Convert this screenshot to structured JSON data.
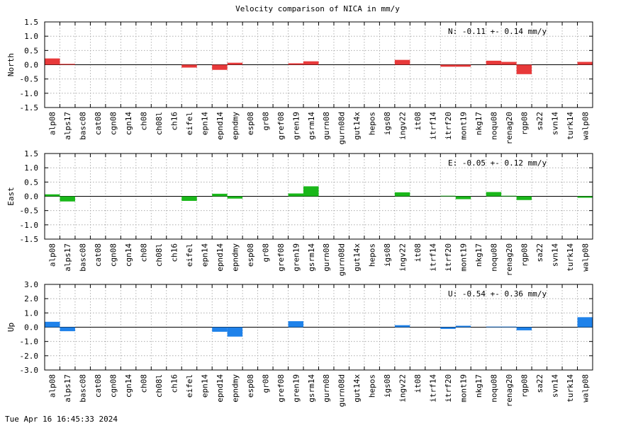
{
  "chart_data": {
    "type": "bar",
    "title": "Velocity comparison of NICA in mm/y",
    "categories": [
      "alp08",
      "alps17",
      "basc08",
      "cat08",
      "cgn08",
      "cgn14",
      "ch08",
      "ch08l",
      "ch16",
      "eifel",
      "epn14",
      "epnd14",
      "epndmy",
      "esp08",
      "gr08",
      "gref08",
      "gren19",
      "gsrm14",
      "gurn08",
      "gurn08d",
      "gut14x",
      "hepos",
      "igs08",
      "ingv22",
      "it08",
      "itrf14",
      "itrf20",
      "mont19",
      "nkg17",
      "noqu08",
      "renag20",
      "rgp08",
      "sa22",
      "svn14",
      "turk14",
      "walp08"
    ],
    "panels": [
      {
        "ylabel": "North",
        "ylim": [
          -1.5,
          1.5
        ],
        "yticks": [
          -1.5,
          -1.0,
          -0.5,
          0.0,
          0.5,
          1.0,
          1.5
        ],
        "tick_labels": [
          "-1.5",
          "-1.0",
          "-0.5",
          "0.0",
          "0.5",
          "1.0",
          "1.5"
        ],
        "annotation": "N:  -0.11 +-  0.14 mm/y",
        "color": "#e8393a",
        "values": [
          0.22,
          0.03,
          0,
          0,
          0,
          0,
          0,
          0,
          0,
          -0.1,
          0,
          -0.18,
          0.07,
          0,
          0,
          0,
          0.05,
          0.12,
          0,
          0,
          0,
          0,
          0,
          0.17,
          0,
          0,
          -0.07,
          -0.07,
          0,
          0.14,
          0.1,
          -0.33,
          0,
          0,
          0,
          0.1
        ]
      },
      {
        "ylabel": "East",
        "ylim": [
          -1.5,
          1.5
        ],
        "yticks": [
          -1.5,
          -1.0,
          -0.5,
          0.0,
          0.5,
          1.0,
          1.5
        ],
        "tick_labels": [
          "-1.5",
          "-1.0",
          "-0.5",
          "0.0",
          "0.5",
          "1.0",
          "1.5"
        ],
        "annotation": "E:  -0.05 +-  0.12 mm/y",
        "color": "#1ab81a",
        "values": [
          0.07,
          -0.18,
          0,
          0,
          0,
          0,
          0,
          0,
          0,
          -0.16,
          0,
          0.09,
          -0.08,
          0,
          0,
          0,
          0.1,
          0.35,
          0,
          0,
          0,
          0,
          0,
          0.14,
          0,
          0,
          0.02,
          -0.1,
          0,
          0.15,
          0.02,
          -0.13,
          0,
          0,
          0,
          -0.05
        ]
      },
      {
        "ylabel": "Up",
        "ylim": [
          -3.0,
          3.0
        ],
        "yticks": [
          -3.0,
          -2.0,
          -1.0,
          0.0,
          1.0,
          2.0,
          3.0
        ],
        "tick_labels": [
          "-3.0",
          "-2.0",
          "-1.0",
          "0.0",
          "1.0",
          "2.0",
          "3.0"
        ],
        "annotation": "U:  -0.54 +-  0.36 mm/y",
        "color": "#1f82ea",
        "values": [
          0.38,
          -0.28,
          0,
          0,
          0,
          0,
          0,
          0,
          0,
          0,
          0,
          -0.32,
          -0.66,
          0,
          0,
          0,
          0.42,
          0,
          0,
          0,
          0,
          0,
          0,
          0.14,
          0,
          0,
          -0.12,
          0.1,
          0,
          0.04,
          0.04,
          -0.22,
          0,
          0,
          0,
          0.7
        ]
      }
    ],
    "grid": true,
    "xlabel": ""
  },
  "footer": {
    "timestamp": "Tue Apr 16 16:45:33 2024"
  }
}
